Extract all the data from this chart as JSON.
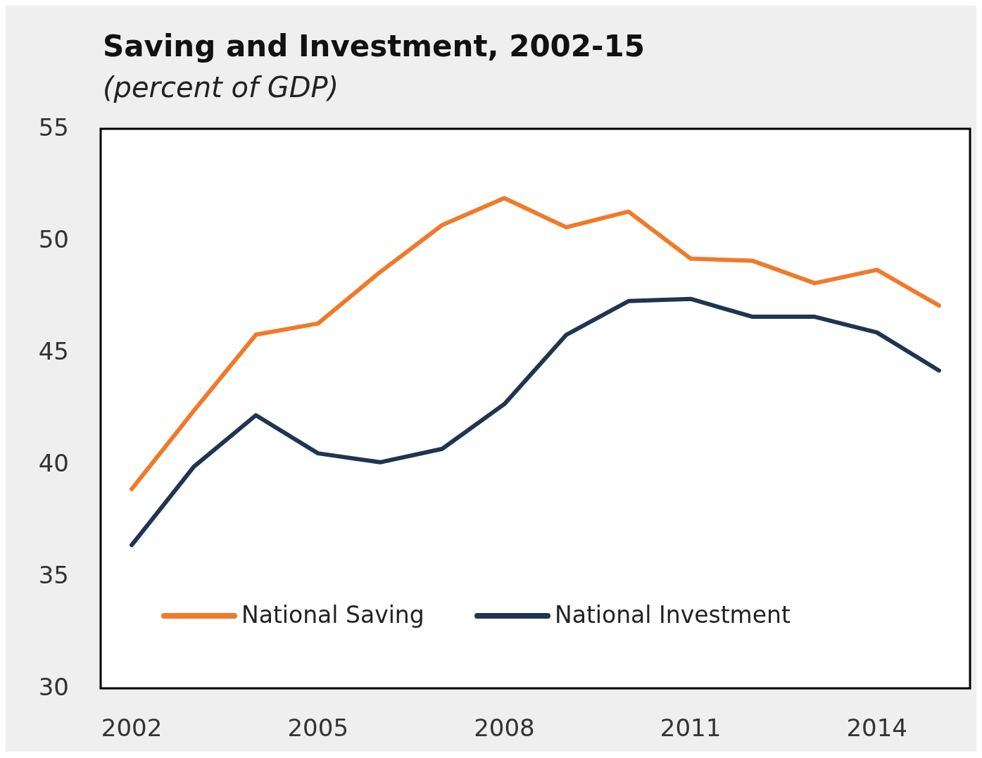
{
  "chart_data": {
    "type": "line",
    "title": "Saving and Investment, 2002-15",
    "subtitle": "(percent of GDP)",
    "x": [
      2002,
      2003,
      2004,
      2005,
      2006,
      2007,
      2008,
      2009,
      2010,
      2011,
      2012,
      2013,
      2014,
      2015
    ],
    "series": [
      {
        "name": "National Saving",
        "color": "#f07a2a",
        "values": [
          38.9,
          42.4,
          45.8,
          46.3,
          48.6,
          50.7,
          51.9,
          50.6,
          51.3,
          49.2,
          49.1,
          48.1,
          48.7,
          47.1
        ]
      },
      {
        "name": "National Investment",
        "color": "#1f3550",
        "values": [
          36.4,
          39.9,
          42.2,
          40.5,
          40.1,
          40.7,
          42.7,
          45.8,
          47.3,
          47.4,
          46.6,
          46.6,
          45.9,
          44.2
        ]
      }
    ],
    "xlim": [
      2001.5,
      2015.5
    ],
    "xticks": [
      2002,
      2005,
      2008,
      2011,
      2014
    ],
    "ylim": [
      30,
      55
    ],
    "yticks": [
      30,
      35,
      40,
      45,
      50,
      55
    ],
    "grid": false,
    "legend": "bottom left",
    "line_style": "solid",
    "marker": "none"
  }
}
